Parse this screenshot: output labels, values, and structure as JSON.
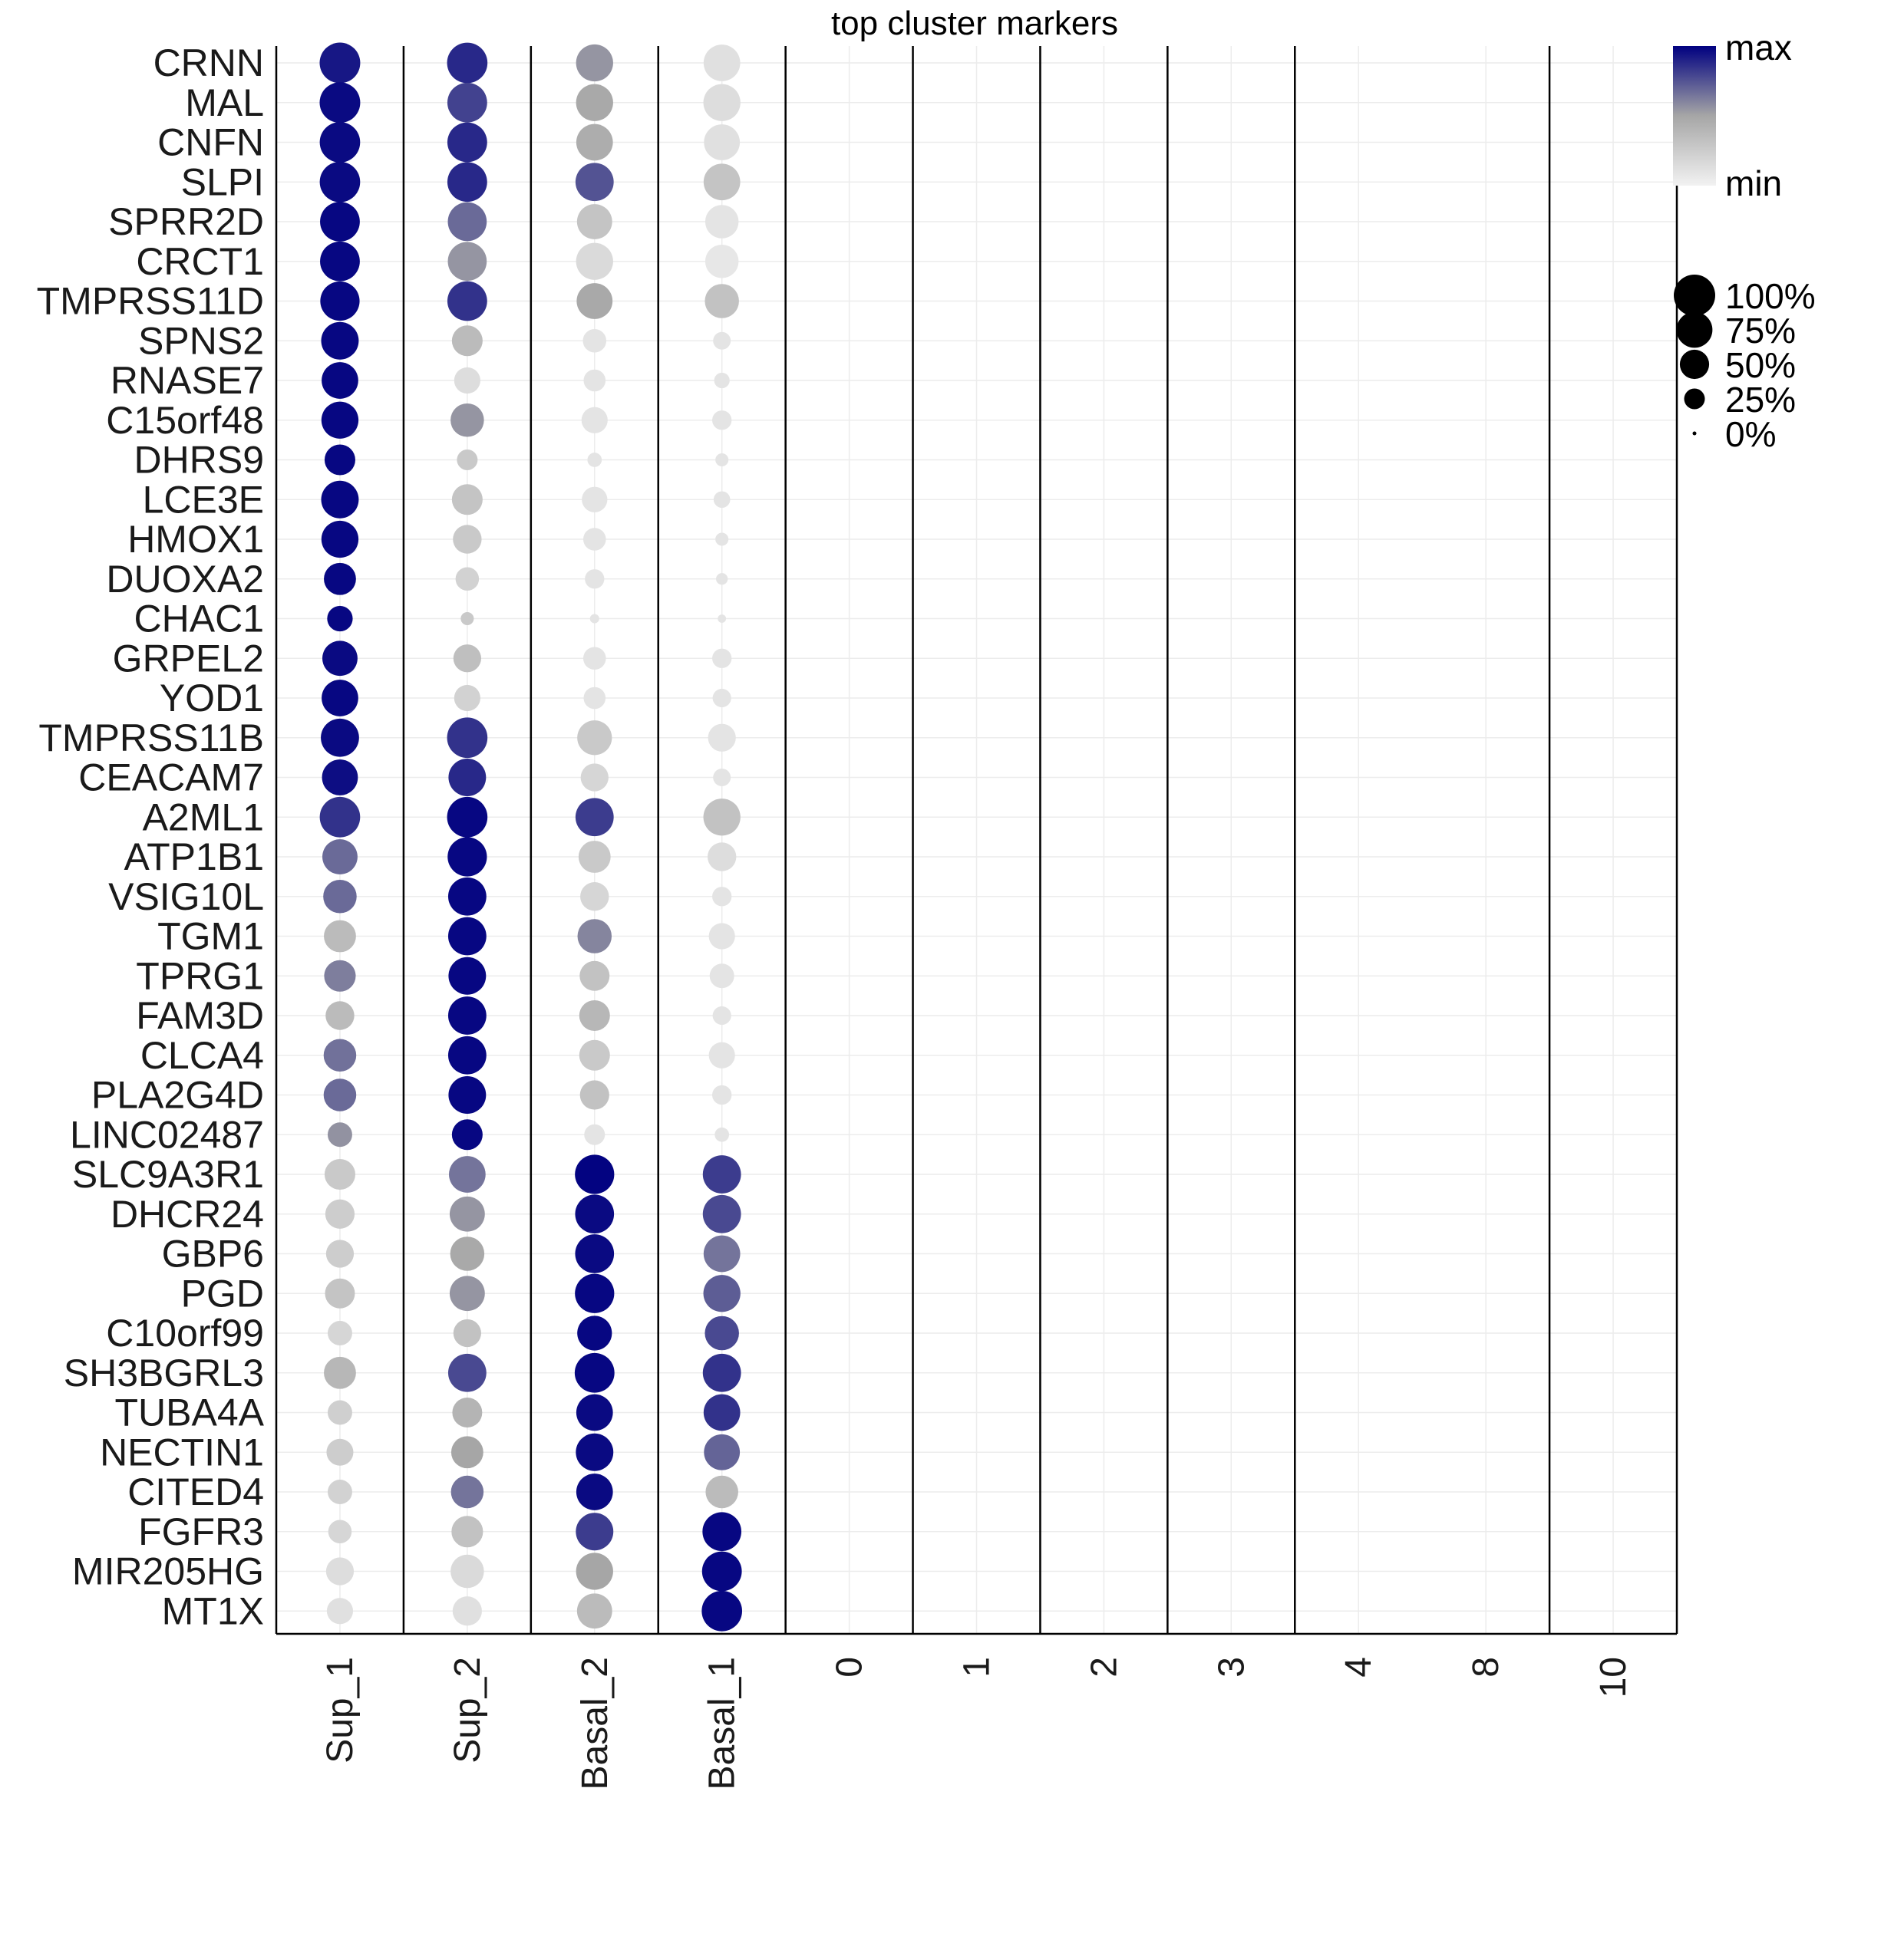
{
  "chart_data": {
    "type": "dotplot",
    "title": "top cluster markers",
    "genes": [
      "CRNN",
      "MAL",
      "CNFN",
      "SLPI",
      "SPRR2D",
      "CRCT1",
      "TMPRSS11D",
      "SPNS2",
      "RNASE7",
      "C15orf48",
      "DHRS9",
      "LCE3E",
      "HMOX1",
      "DUOXA2",
      "CHAC1",
      "GRPEL2",
      "YOD1",
      "TMPRSS11B",
      "CEACAM7",
      "A2ML1",
      "ATP1B1",
      "VSIG10L",
      "TGM1",
      "TPRG1",
      "FAM3D",
      "CLCA4",
      "PLA2G4D",
      "LINC02487",
      "SLC9A3R1",
      "DHCR24",
      "GBP6",
      "PGD",
      "C10orf99",
      "SH3BGRL3",
      "TUBA4A",
      "NECTIN1",
      "CITED4",
      "FGFR3",
      "MIR205HG",
      "MT1X"
    ],
    "clusters": [
      "Sup_1",
      "Sup_2",
      "Basal_2",
      "Basal_1",
      "0",
      "1",
      "2",
      "3",
      "4",
      "8",
      "10"
    ],
    "separator_after_cluster": [
      0,
      1,
      2,
      3,
      4,
      5,
      6,
      7,
      9
    ],
    "color_scale": {
      "low": "#ebebeb",
      "mid": "#a6a6a6",
      "high": "#000080",
      "max_label": "max",
      "min_label": "min"
    },
    "size_legend": [
      {
        "label": "100%",
        "pct": 100
      },
      {
        "label": "75%",
        "pct": 75
      },
      {
        "label": "50%",
        "pct": 50
      },
      {
        "label": "25%",
        "pct": 25
      },
      {
        "label": "0%",
        "pct": 0
      }
    ],
    "pct_expressed": {
      "Sup_1": [
        96,
        96,
        95,
        95,
        92,
        92,
        90,
        82,
        78,
        80,
        55,
        82,
        80,
        60,
        38,
        72,
        78,
        85,
        75,
        95,
        72,
        65,
        60,
        58,
        48,
        62,
        62,
        35,
        55,
        50,
        45,
        52,
        35,
        60,
        35,
        42,
        35,
        32,
        45,
        40
      ],
      "Sup_2": [
        95,
        92,
        92,
        92,
        88,
        88,
        92,
        55,
        40,
        65,
        25,
        55,
        48,
        32,
        10,
        45,
        40,
        95,
        82,
        95,
        90,
        85,
        85,
        82,
        85,
        85,
        82,
        55,
        78,
        72,
        68,
        72,
        45,
        85,
        52,
        60,
        62,
        58,
        65,
        50
      ],
      "Basal_2": [
        80,
        80,
        78,
        85,
        72,
        80,
        75,
        32,
        28,
        40,
        12,
        38,
        30,
        22,
        5,
        30,
        28,
        70,
        45,
        85,
        60,
        48,
        68,
        52,
        55,
        55,
        50,
        25,
        90,
        88,
        88,
        90,
        70,
        92,
        78,
        82,
        78,
        82,
        80,
        72
      ],
      "Basal_1": [
        78,
        80,
        75,
        78,
        65,
        65,
        68,
        18,
        14,
        22,
        10,
        16,
        10,
        8,
        4,
        22,
        20,
        45,
        18,
        80,
        48,
        22,
        40,
        35,
        20,
        40,
        22,
        12,
        85,
        85,
        78,
        80,
        68,
        85,
        78,
        75,
        62,
        88,
        92,
        95
      ],
      "0": [],
      "1": [],
      "2": [],
      "3": [],
      "4": [],
      "8": [],
      "10": []
    },
    "scaled_expression": {
      "Sup_1": [
        0.93,
        0.97,
        0.97,
        0.97,
        0.98,
        0.98,
        0.98,
        0.98,
        0.98,
        0.98,
        0.98,
        0.98,
        0.98,
        0.98,
        0.98,
        0.97,
        0.98,
        0.97,
        0.96,
        0.85,
        0.68,
        0.68,
        0.35,
        0.62,
        0.35,
        0.66,
        0.68,
        0.56,
        0.25,
        0.22,
        0.22,
        0.28,
        0.15,
        0.38,
        0.2,
        0.22,
        0.18,
        0.15,
        0.1,
        0.08
      ],
      "Sup_2": [
        0.88,
        0.8,
        0.88,
        0.88,
        0.68,
        0.55,
        0.85,
        0.35,
        0.1,
        0.55,
        0.25,
        0.28,
        0.25,
        0.18,
        0.25,
        0.32,
        0.18,
        0.85,
        0.88,
        0.98,
        0.98,
        0.98,
        0.98,
        0.98,
        0.98,
        0.98,
        0.98,
        0.98,
        0.65,
        0.55,
        0.48,
        0.55,
        0.3,
        0.78,
        0.4,
        0.5,
        0.65,
        0.3,
        0.12,
        0.08
      ],
      "Basal_2": [
        0.55,
        0.48,
        0.45,
        0.75,
        0.28,
        0.12,
        0.48,
        0.05,
        0.05,
        0.05,
        0.05,
        0.05,
        0.05,
        0.05,
        0.05,
        0.05,
        0.05,
        0.25,
        0.15,
        0.82,
        0.25,
        0.15,
        0.6,
        0.3,
        0.38,
        0.25,
        0.3,
        0.05,
        0.99,
        0.97,
        0.97,
        0.98,
        0.98,
        0.98,
        0.97,
        0.97,
        0.97,
        0.82,
        0.5,
        0.35
      ],
      "Basal_1": [
        0.08,
        0.1,
        0.08,
        0.28,
        0.05,
        0.03,
        0.3,
        0.05,
        0.05,
        0.05,
        0.05,
        0.05,
        0.05,
        0.05,
        0.05,
        0.05,
        0.05,
        0.05,
        0.05,
        0.3,
        0.1,
        0.05,
        0.05,
        0.05,
        0.05,
        0.05,
        0.05,
        0.05,
        0.82,
        0.78,
        0.65,
        0.72,
        0.78,
        0.85,
        0.85,
        0.7,
        0.35,
        0.98,
        0.98,
        0.98
      ]
    }
  }
}
